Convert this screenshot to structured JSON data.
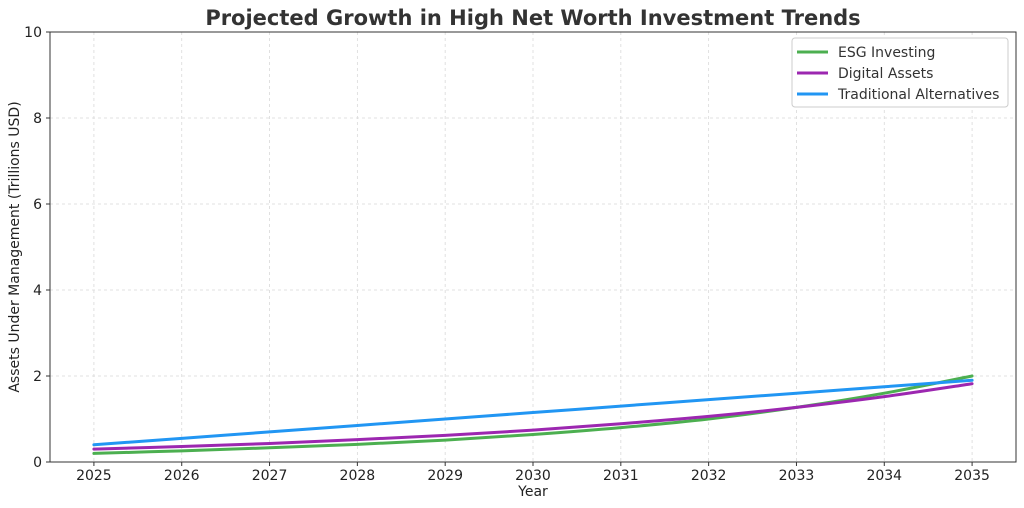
{
  "chart_data": {
    "type": "line",
    "title": "Projected Growth in High Net Worth Investment Trends",
    "xlabel": "Year",
    "ylabel": "Assets Under Management (Trillions USD)",
    "x": [
      2025,
      2026,
      2027,
      2028,
      2029,
      2030,
      2031,
      2032,
      2033,
      2034,
      2035
    ],
    "xlim": [
      2024.5,
      2035.5
    ],
    "ylim": [
      0,
      10
    ],
    "yticks": [
      0,
      2,
      4,
      6,
      8,
      10
    ],
    "grid": true,
    "legend_position": "top-right",
    "series": [
      {
        "name": "ESG Investing",
        "color": "#4caf50",
        "values": [
          0.2,
          0.26,
          0.33,
          0.41,
          0.51,
          0.64,
          0.8,
          1.0,
          1.27,
          1.6,
          2.0
        ]
      },
      {
        "name": "Digital Assets",
        "color": "#9c27b0",
        "values": [
          0.3,
          0.36,
          0.43,
          0.52,
          0.62,
          0.74,
          0.89,
          1.06,
          1.27,
          1.52,
          1.82
        ]
      },
      {
        "name": "Traditional Alternatives",
        "color": "#2196f3",
        "values": [
          0.4,
          0.55,
          0.7,
          0.85,
          1.0,
          1.15,
          1.3,
          1.45,
          1.6,
          1.75,
          1.9
        ]
      }
    ]
  }
}
